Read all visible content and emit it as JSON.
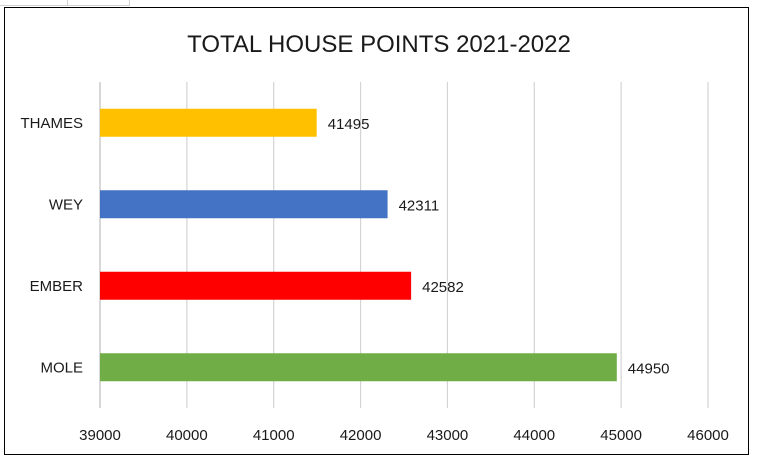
{
  "chart_data": {
    "type": "bar",
    "orientation": "horizontal",
    "title": "TOTAL HOUSE POINTS 2021-2022",
    "xlabel": "",
    "ylabel": "",
    "categories": [
      "THAMES",
      "WEY",
      "EMBER",
      "MOLE"
    ],
    "values": [
      41495,
      42311,
      42582,
      44950
    ],
    "data_labels": [
      "41495",
      "42311",
      "42582",
      "44950"
    ],
    "colors": [
      "#FFC000",
      "#4472C4",
      "#FF0000",
      "#70AD47"
    ],
    "xlim": [
      39000,
      46000
    ],
    "xticks": [
      39000,
      40000,
      41000,
      42000,
      43000,
      44000,
      45000,
      46000
    ],
    "xtick_labels": [
      "39000",
      "40000",
      "41000",
      "42000",
      "43000",
      "44000",
      "45000",
      "46000"
    ],
    "grid": "vertical",
    "legend": "none"
  }
}
